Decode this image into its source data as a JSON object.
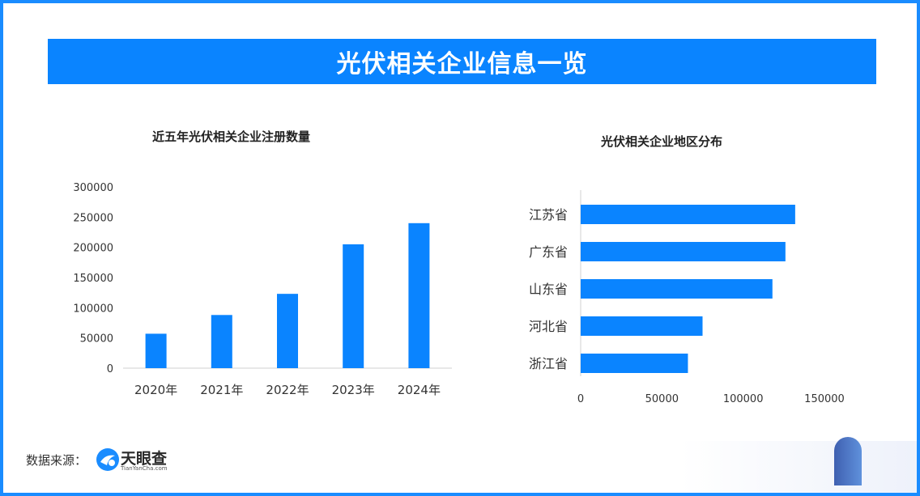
{
  "header": {
    "title": "光伏相关企业信息一览"
  },
  "footer": {
    "source_label": "数据来源：",
    "logo_name": "天眼查",
    "logo_sub": "TianYanCha.com"
  },
  "colors": {
    "bar": "#0a84ff",
    "banner": "#0a84ff",
    "frame": "#1a8cff"
  },
  "chart_data": [
    {
      "type": "bar",
      "title": "近五年光伏相关企业注册数量",
      "categories": [
        "2020年",
        "2021年",
        "2022年",
        "2023年",
        "2024年"
      ],
      "values": [
        57000,
        88000,
        123000,
        205000,
        240000
      ],
      "yticks": [
        "0",
        "50000",
        "100000",
        "150000",
        "200000",
        "250000",
        "300000"
      ],
      "ylim": [
        0,
        300000
      ],
      "xlabel": "",
      "ylabel": "",
      "grid": false
    },
    {
      "type": "bar",
      "orientation": "horizontal",
      "title": "光伏相关企业地区分布",
      "categories": [
        "江苏省",
        "广东省",
        "山东省",
        "河北省",
        "浙江省"
      ],
      "values": [
        132000,
        126000,
        118000,
        75000,
        66000
      ],
      "xticks": [
        "0",
        "50000",
        "100000",
        "150000"
      ],
      "xlim": [
        0,
        150000
      ],
      "xlabel": "",
      "ylabel": "",
      "grid": false
    }
  ]
}
